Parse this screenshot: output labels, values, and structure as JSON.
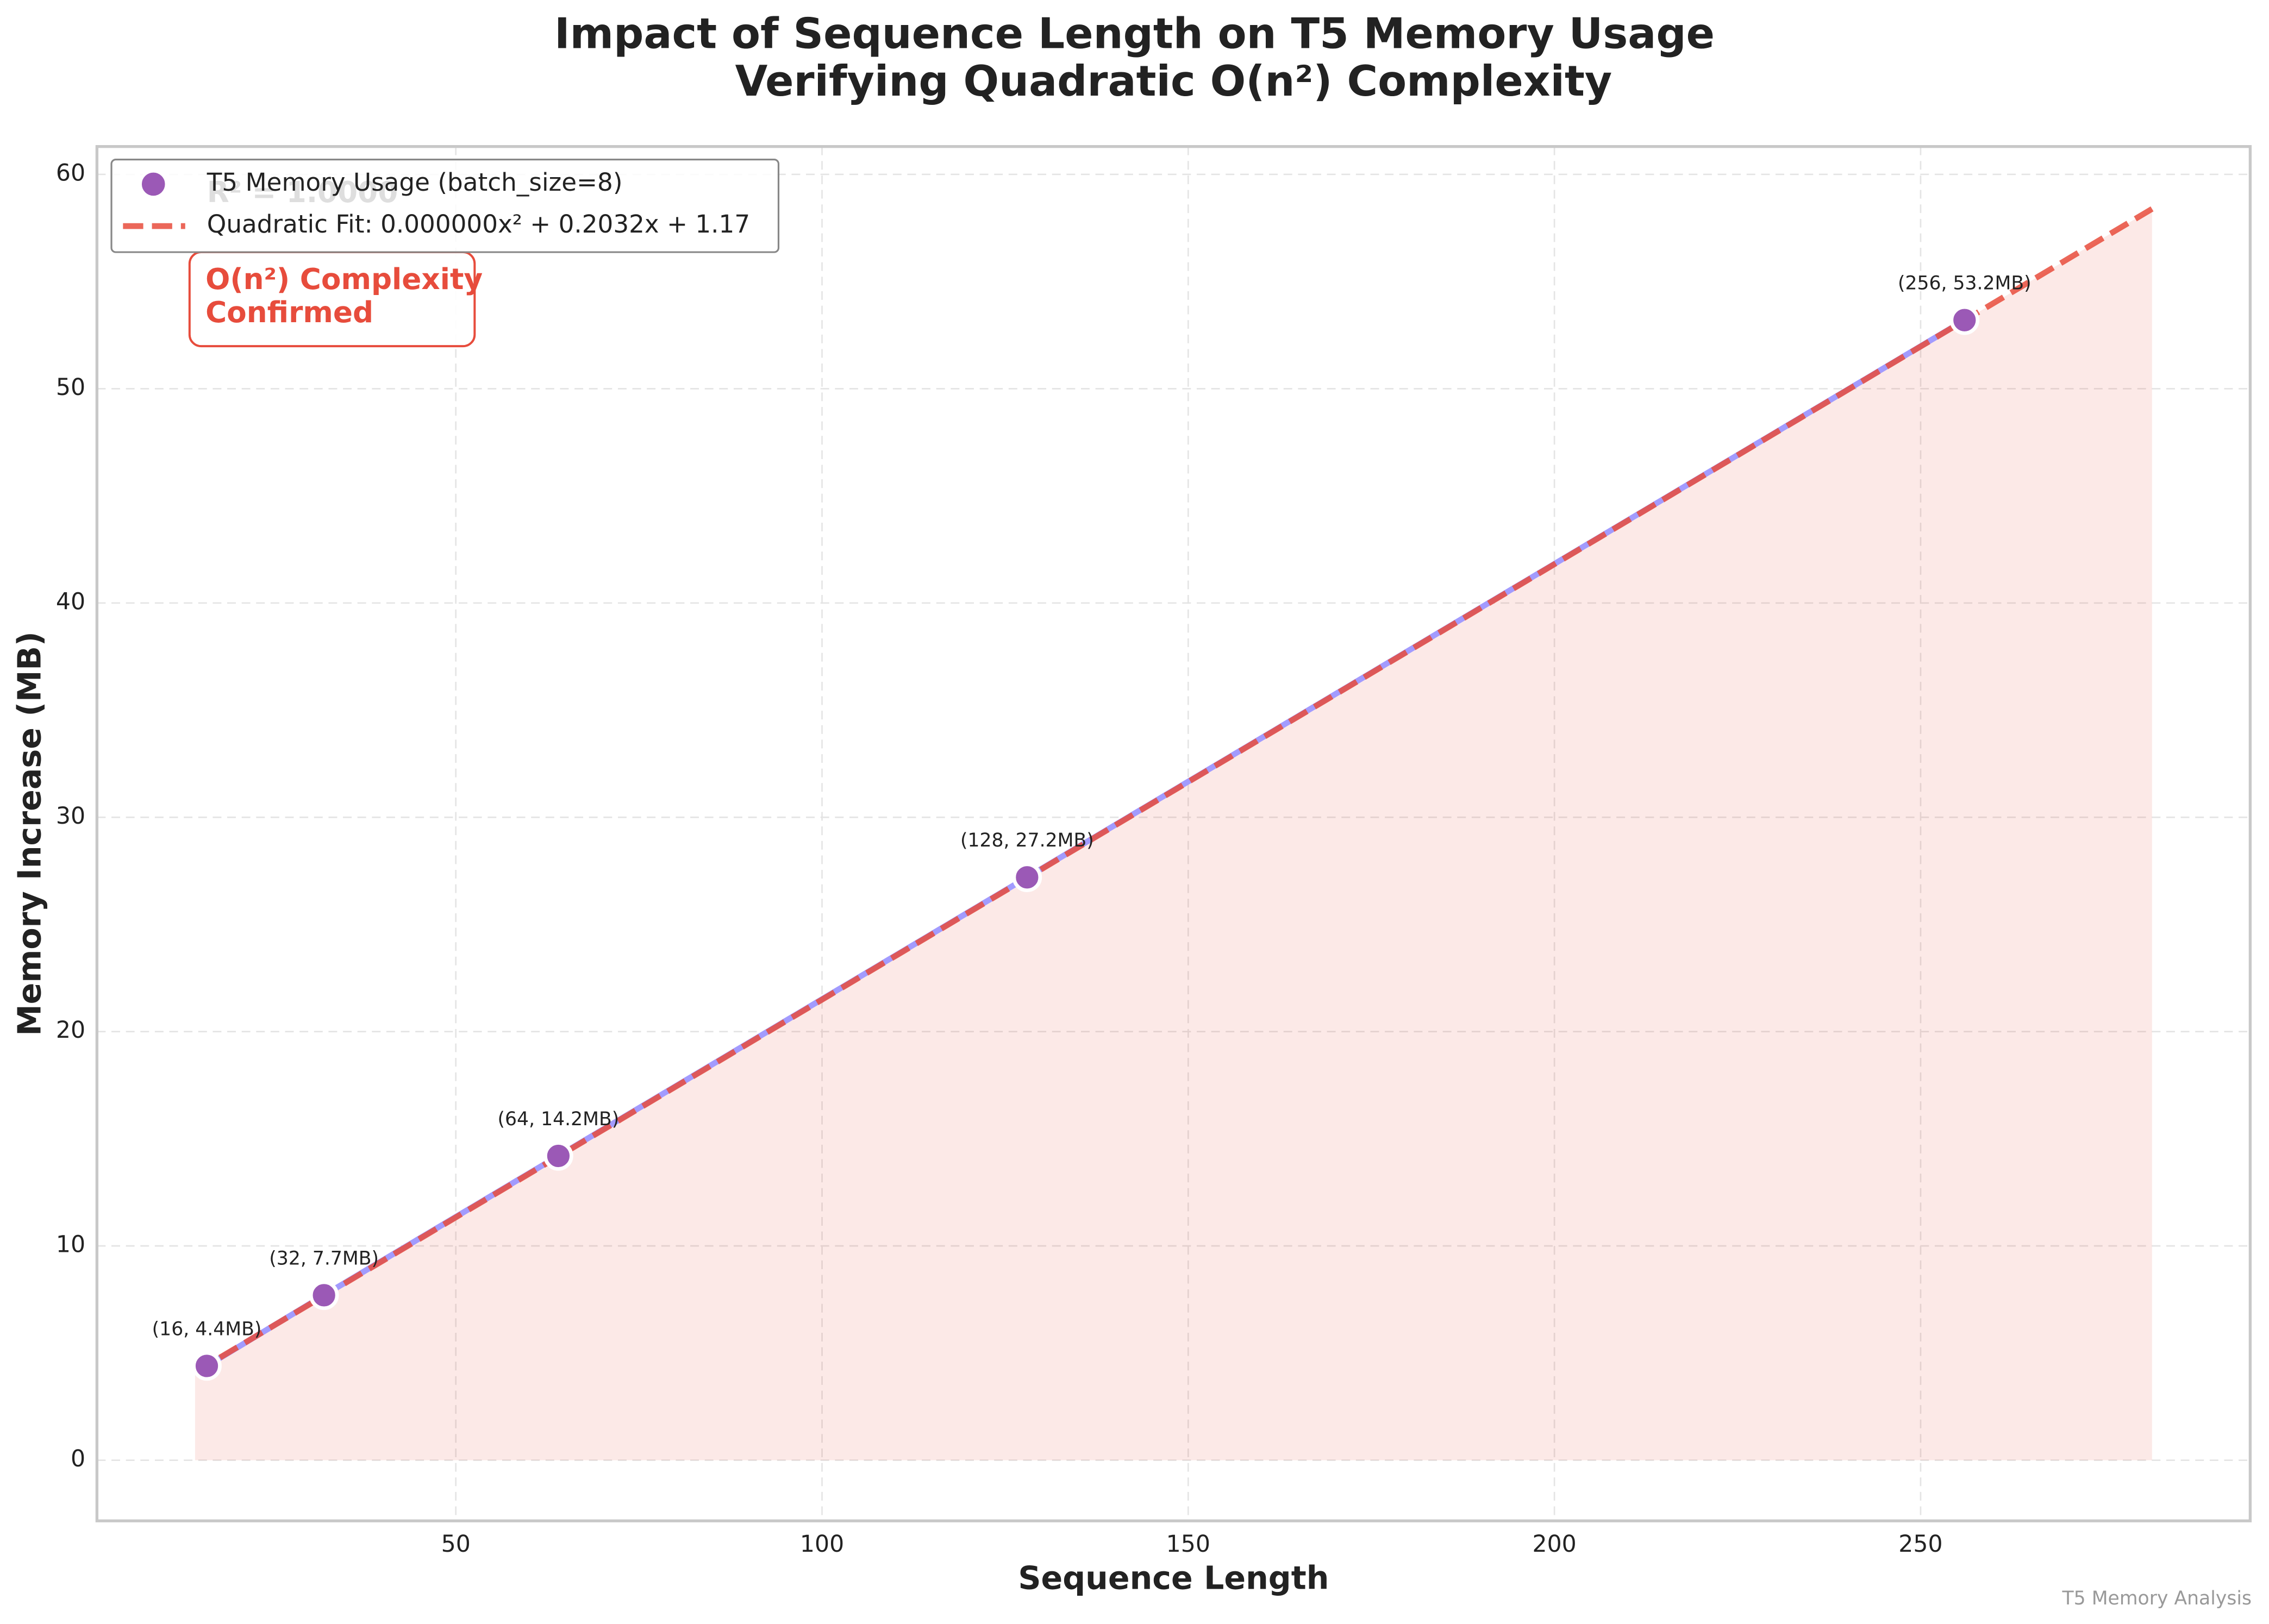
{
  "chart_data": {
    "type": "scatter",
    "title": "Impact of Sequence Length on T5 Memory Usage",
    "subtitle": "Verifying Quadratic O(n²) Complexity",
    "xlabel": "Sequence Length",
    "ylabel": "Memory Increase (MB)",
    "x": [
      16,
      32,
      64,
      128,
      256
    ],
    "series": [
      {
        "name": "T5 Memory Usage (batch_size=8)",
        "color": "#9b59b6",
        "line_color": "#a29bfe",
        "values": [
          4.4,
          7.7,
          14.2,
          27.2,
          53.2
        ],
        "value_labels": [
          "(16, 4.4MB)",
          "(32, 7.7MB)",
          "(64, 14.2MB)",
          "(128, 27.2MB)",
          "(256, 53.2MB)"
        ]
      },
      {
        "name": "Quadratic Fit: 0.000000x² + 0.2032x + 1.17",
        "color": "#e74c3c",
        "type": "line",
        "dashed": true,
        "fill": true,
        "x": [
          14.4,
          281.6
        ],
        "values": [
          4.1,
          58.39
        ]
      }
    ],
    "annotations": {
      "r_squared": "R² = 1.0000",
      "complexity": [
        "O(n²) Complexity",
        "Confirmed"
      ]
    },
    "footer": "T5 Memory Analysis",
    "xlim": [
      1,
      295
    ],
    "ylim": [
      -2.83,
      61.3
    ],
    "xticks": [
      50,
      100,
      150,
      200,
      250
    ],
    "yticks": [
      0,
      10,
      20,
      30,
      40,
      50,
      60
    ],
    "grid": true,
    "legend": "upper left"
  }
}
